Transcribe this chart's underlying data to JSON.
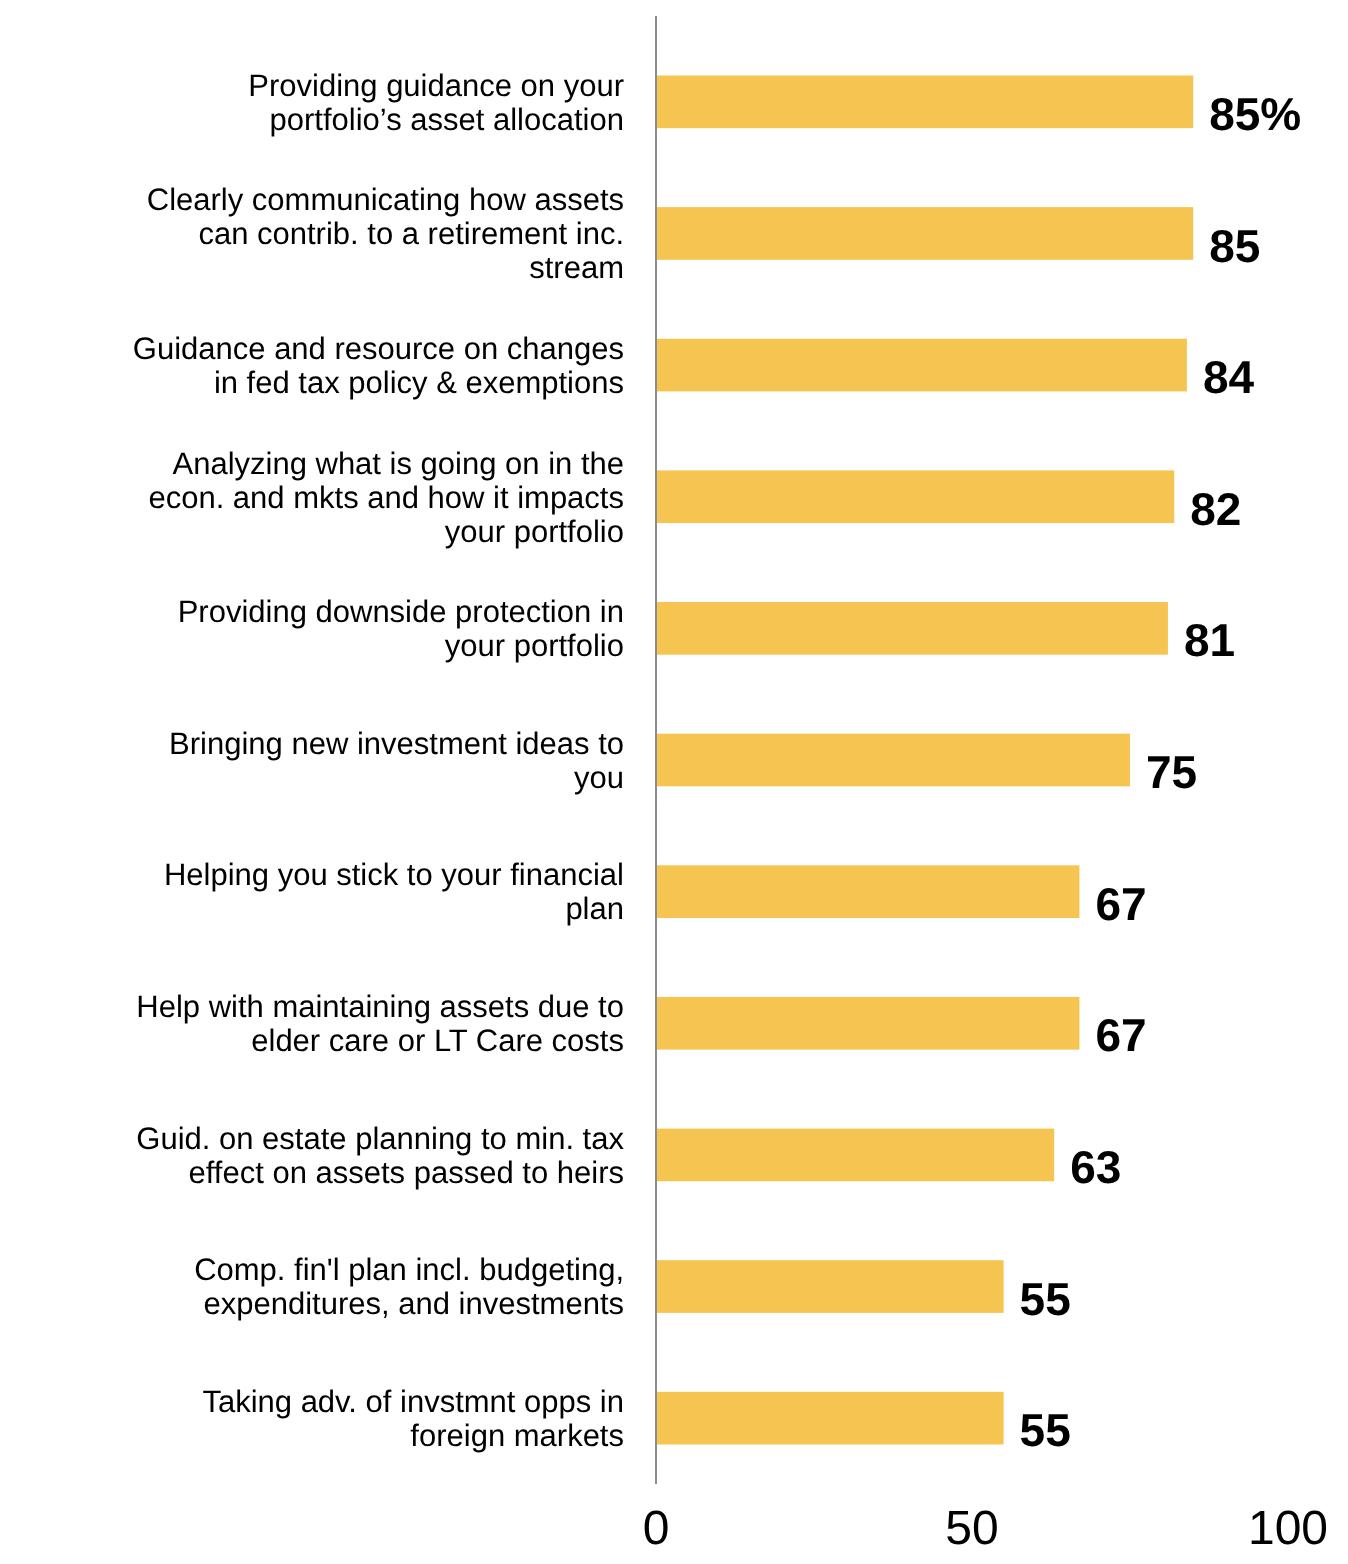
{
  "chart_data": {
    "type": "bar",
    "orientation": "horizontal",
    "categories": [
      "Providing guidance on your\nportfolio’s asset allocation",
      "Clearly communicating how assets\ncan contrib. to a retirement inc.\nstream",
      "Guidance and resource on changes\nin fed tax policy & exemptions",
      "Analyzing what is going on in the\necon. and mkts and how it impacts\nyour portfolio",
      "Providing downside protection in\nyour portfolio",
      "Bringing new investment ideas to\nyou",
      "Helping you stick to your financial\nplan",
      "Help with maintaining assets due to\nelder care or LT Care costs",
      "Guid. on estate planning to min. tax\neffect on assets passed to heirs",
      "Comp. fin'l plan incl. budgeting,\nexpenditures, and investments",
      "Taking adv. of invstmnt opps in\nforeign markets"
    ],
    "values": [
      85,
      85,
      84,
      82,
      81,
      75,
      67,
      67,
      63,
      55,
      55
    ],
    "value_labels": [
      "85%",
      "85",
      "84",
      "82",
      "81",
      "75",
      "67",
      "67",
      "63",
      "55",
      "55"
    ],
    "color": "#f5c451",
    "xlim": [
      0,
      100
    ],
    "xticks": [
      0,
      50,
      100
    ]
  }
}
